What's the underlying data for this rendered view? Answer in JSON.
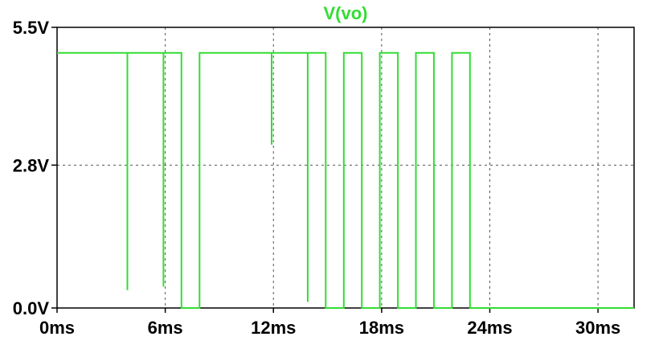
{
  "chart_data": {
    "type": "line",
    "title": "V(vo)",
    "xlabel": "",
    "ylabel": "",
    "xlim": [
      0,
      32
    ],
    "ylim": [
      0,
      5.5
    ],
    "x_ticks": [
      0,
      6,
      12,
      18,
      24,
      30
    ],
    "x_tick_labels": [
      "0ms",
      "6ms",
      "12ms",
      "18ms",
      "24ms",
      "30ms"
    ],
    "y_ticks": [
      0,
      2.8,
      5.5
    ],
    "y_tick_labels": [
      "0.0V",
      "2.8V",
      "5.5V"
    ],
    "grid": true,
    "trace_color": "#33dd33",
    "series": [
      {
        "name": "V(vo)",
        "x": [
          0,
          3.9,
          3.9,
          3.9,
          3.9,
          5.9,
          5.9,
          5.9,
          5.9,
          6.9,
          6.9,
          7.9,
          7.9,
          8.9,
          8.9,
          11.9,
          11.9,
          11.9,
          11.9,
          13.9,
          13.9,
          13.9,
          13.9,
          14.4,
          14.4,
          14.9,
          14.9,
          15.9,
          15.9,
          16.9,
          16.9,
          17.9,
          17.9,
          18.9,
          18.9,
          19.9,
          19.9,
          20.9,
          20.9,
          21.9,
          21.9,
          22.9,
          22.9,
          32
        ],
        "y": [
          5.0,
          5.0,
          0.35,
          0.35,
          5.0,
          5.0,
          0.42,
          0.42,
          5.0,
          5.0,
          0.0,
          0.0,
          5.0,
          5.0,
          5.0,
          5.0,
          3.2,
          3.2,
          5.0,
          5.0,
          0.12,
          0.12,
          5.0,
          5.0,
          5.0,
          5.0,
          0.0,
          0.0,
          5.0,
          5.0,
          0.0,
          0.0,
          5.0,
          5.0,
          0.0,
          0.0,
          5.0,
          5.0,
          0.0,
          0.0,
          5.0,
          5.0,
          0.0,
          0.0
        ]
      }
    ]
  }
}
